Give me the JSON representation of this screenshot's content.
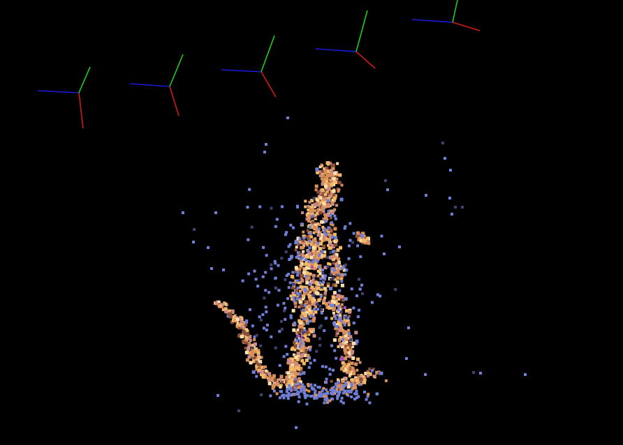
{
  "viewer": {
    "background_color": "#000000",
    "axis_colors": {
      "x_axis": "#d11a1a",
      "y_axis": "#1fcc1f",
      "z_axis": "#1a1ad9"
    },
    "camera_frame_count": 5,
    "point_cloud": {
      "subject": "cat",
      "palette": {
        "body_light": "#f2b866",
        "body_mid": "#d98f5a",
        "body_dark": "#8a4d3c",
        "body_pink": "#c98a8a",
        "highlight": "#ffe0b0",
        "fringe_blue": "#6f7fd6",
        "fringe_dim": "#3d4270",
        "accent_purple": "#a050c0"
      }
    }
  }
}
